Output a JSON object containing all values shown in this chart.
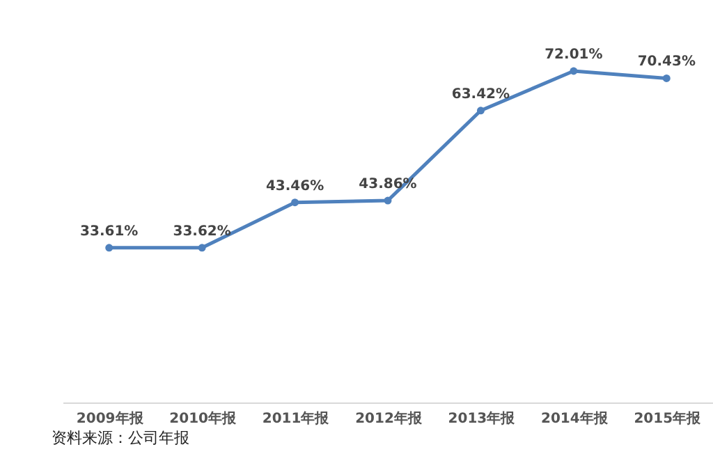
{
  "chart_data": {
    "type": "line",
    "categories": [
      "2009年报",
      "2010年报",
      "2011年报",
      "2012年报",
      "2013年报",
      "2014年报",
      "2015年报"
    ],
    "series": [
      {
        "color": "#4f81bd",
        "values": [
          33.61,
          33.62,
          43.46,
          43.86,
          63.42,
          72.01,
          70.43
        ],
        "value_labels": [
          "33.61%",
          "33.62%",
          "43.46%",
          "43.86%",
          "63.42%",
          "72.01%",
          "70.43%"
        ]
      }
    ],
    "marker": "circle",
    "grid": false,
    "legend": false,
    "annotations": [
      "资料来源：公司年报"
    ]
  }
}
